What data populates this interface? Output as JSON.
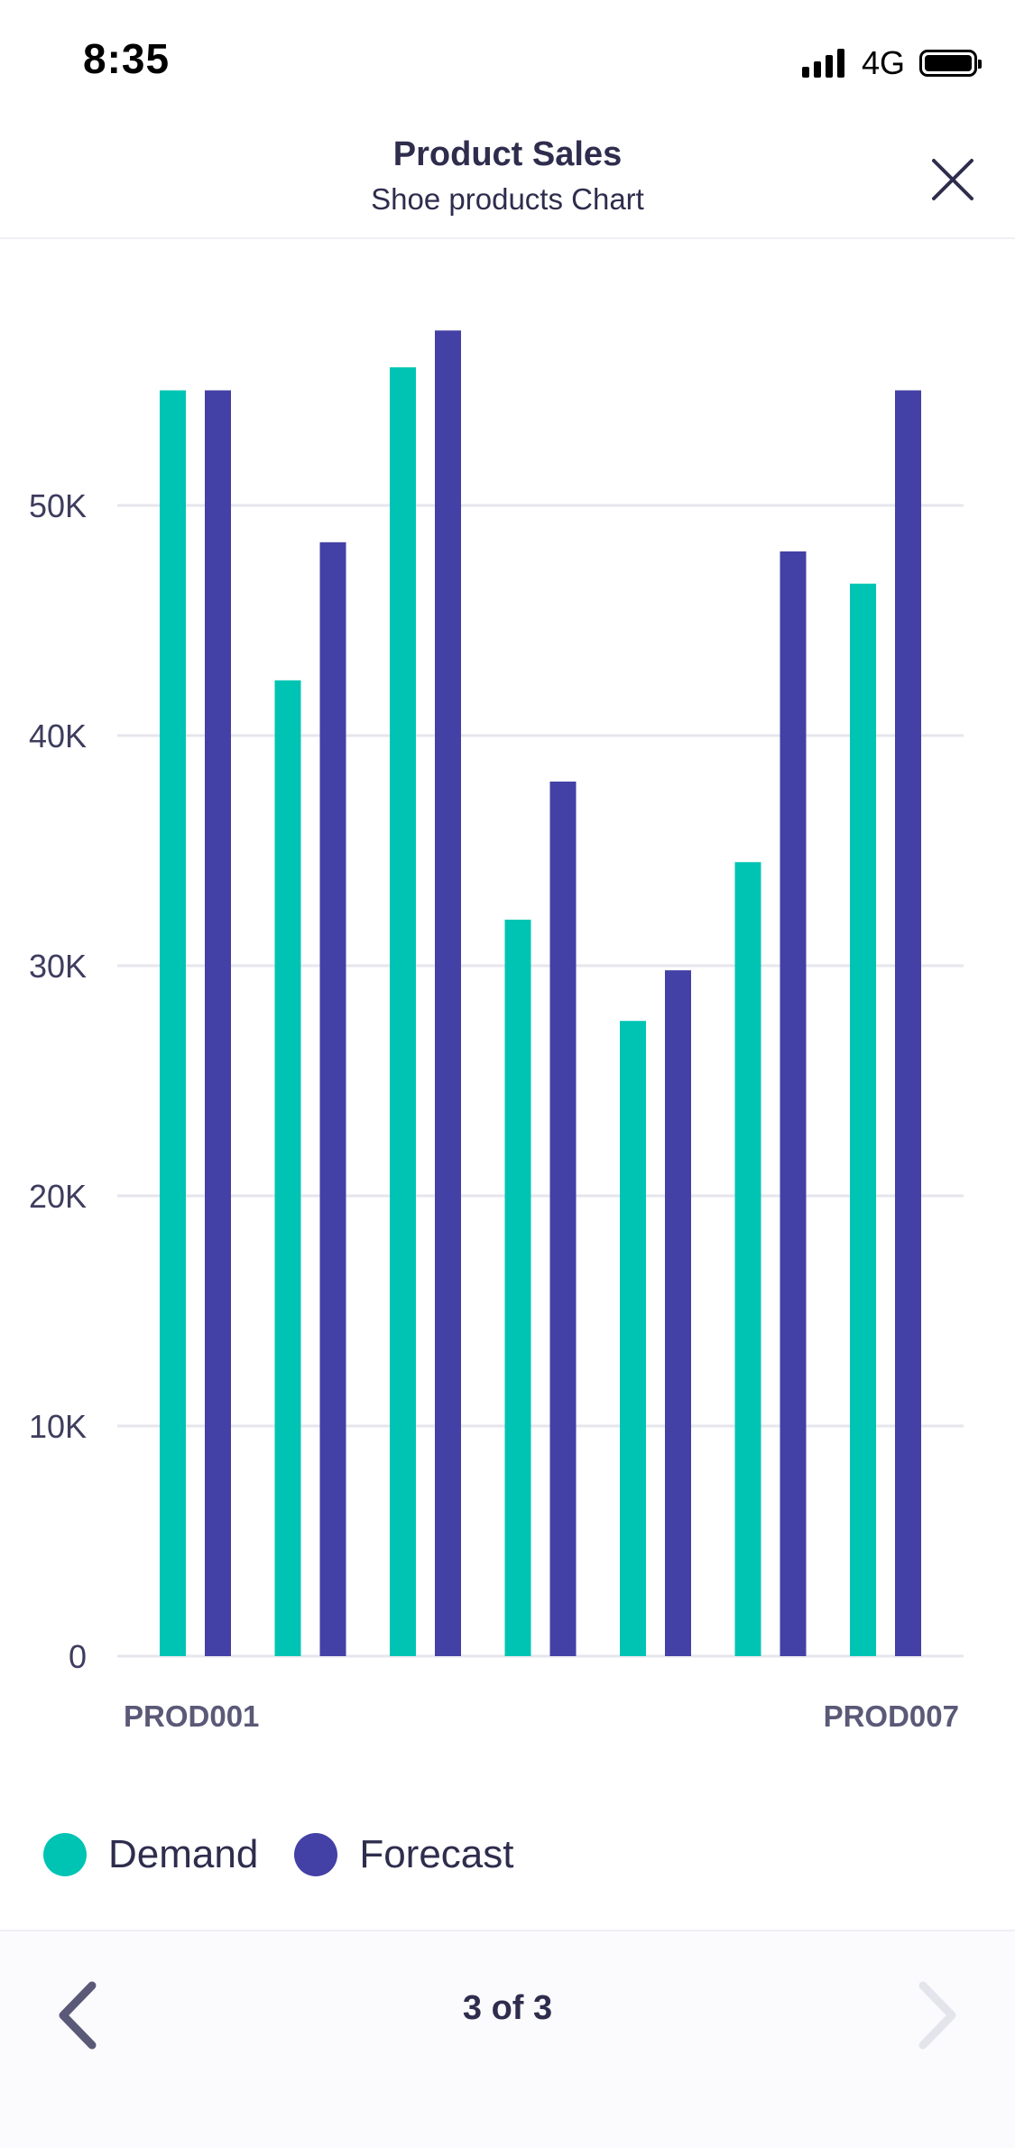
{
  "status_bar": {
    "time": "8:35",
    "network": "4G"
  },
  "header": {
    "title": "Product Sales",
    "subtitle": "Shoe products Chart",
    "close_icon": "close-icon"
  },
  "colors": {
    "demand": "#00c4b3",
    "forecast": "#4340a6",
    "grid": "#e6e6ee",
    "tick_label": "#3e3d5e",
    "category_label": "#5a5977"
  },
  "chart_data": {
    "type": "bar",
    "x_tick_labels": [
      "PROD001",
      "PROD007"
    ],
    "categories": [
      "",
      "",
      "",
      "",
      "",
      "",
      ""
    ],
    "series": [
      {
        "name": "Demand",
        "values": [
          55000,
          42400,
          56000,
          32000,
          27600,
          34500,
          46600
        ]
      },
      {
        "name": "Forecast",
        "values": [
          55000,
          48400,
          57600,
          38000,
          29800,
          48000,
          55000
        ]
      }
    ],
    "ylim": [
      0,
      60000
    ],
    "y_ticks": [
      0,
      10000,
      20000,
      30000,
      40000,
      50000
    ],
    "y_tick_labels": [
      "0",
      "10K",
      "20K",
      "30K",
      "40K",
      "50K"
    ],
    "grid": true,
    "legend_position": "bottom-left"
  },
  "legend": {
    "items": [
      {
        "label": "Demand"
      },
      {
        "label": "Forecast"
      }
    ]
  },
  "footer": {
    "pager": "3 of 3",
    "prev_icon": "chevron-left-icon",
    "next_icon": "chevron-right-icon"
  }
}
